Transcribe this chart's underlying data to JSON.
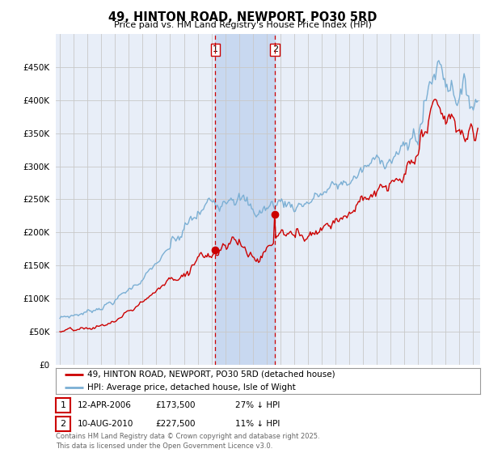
{
  "title": "49, HINTON ROAD, NEWPORT, PO30 5RD",
  "subtitle": "Price paid vs. HM Land Registry's House Price Index (HPI)",
  "ylim": [
    0,
    500000
  ],
  "yticks": [
    0,
    50000,
    100000,
    150000,
    200000,
    250000,
    300000,
    350000,
    400000,
    450000
  ],
  "xlim_start": 1994.7,
  "xlim_end": 2025.5,
  "sale1_x": 2006.28,
  "sale1_y": 173500,
  "sale1_label": "1",
  "sale2_x": 2010.61,
  "sale2_y": 227500,
  "sale2_label": "2",
  "legend_line1": "49, HINTON ROAD, NEWPORT, PO30 5RD (detached house)",
  "legend_line2": "HPI: Average price, detached house, Isle of Wight",
  "table_row1": [
    "1",
    "12-APR-2006",
    "£173,500",
    "27% ↓ HPI"
  ],
  "table_row2": [
    "2",
    "10-AUG-2010",
    "£227,500",
    "11% ↓ HPI"
  ],
  "footer": "Contains HM Land Registry data © Crown copyright and database right 2025.\nThis data is licensed under the Open Government Licence v3.0.",
  "price_color": "#cc0000",
  "hpi_color": "#7bafd4",
  "background_color": "#ffffff",
  "plot_bg_color": "#e8eef8",
  "grid_color": "#c8c8c8",
  "shade_color": "#c8d8f0"
}
